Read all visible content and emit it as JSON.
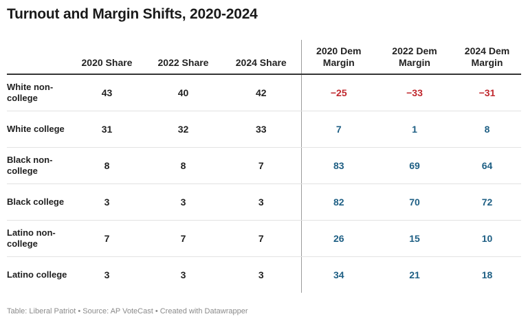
{
  "title": "Turnout and Margin Shifts, 2020-2024",
  "chart_data": {
    "type": "table",
    "title": "Turnout and Margin Shifts, 2020-2024",
    "columns": [
      {
        "key": "label",
        "label": ""
      },
      {
        "key": "share2020",
        "label": "2020 Share"
      },
      {
        "key": "share2022",
        "label": "2022 Share"
      },
      {
        "key": "share2024",
        "label": "2024 Share"
      },
      {
        "key": "margin2020",
        "label": "2020 Dem Margin"
      },
      {
        "key": "margin2022",
        "label": "2022 Dem Margin"
      },
      {
        "key": "margin2024",
        "label": "2024 Dem Margin"
      }
    ],
    "rows": [
      {
        "label": "White non-college",
        "share2020": "43",
        "share2022": "40",
        "share2024": "42",
        "margin2020": "−25",
        "margin2022": "−33",
        "margin2024": "−31"
      },
      {
        "label": "White college",
        "share2020": "31",
        "share2022": "32",
        "share2024": "33",
        "margin2020": "7",
        "margin2022": "1",
        "margin2024": "8"
      },
      {
        "label": "Black non-college",
        "share2020": "8",
        "share2022": "8",
        "share2024": "7",
        "margin2020": "83",
        "margin2022": "69",
        "margin2024": "64"
      },
      {
        "label": "Black college",
        "share2020": "3",
        "share2022": "3",
        "share2024": "3",
        "margin2020": "82",
        "margin2022": "70",
        "margin2024": "72"
      },
      {
        "label": "Latino non-college",
        "share2020": "7",
        "share2022": "7",
        "share2024": "7",
        "margin2020": "26",
        "margin2022": "15",
        "margin2024": "10"
      },
      {
        "label": "Latino college",
        "share2020": "3",
        "share2022": "3",
        "share2024": "3",
        "margin2020": "34",
        "margin2022": "21",
        "margin2024": "18"
      }
    ]
  },
  "colors": {
    "negative": "#c0272d",
    "positive": "#1e5f84",
    "text": "#222222"
  },
  "footer": "Table: Liberal Patriot • Source: AP VoteCast • Created with Datawrapper"
}
